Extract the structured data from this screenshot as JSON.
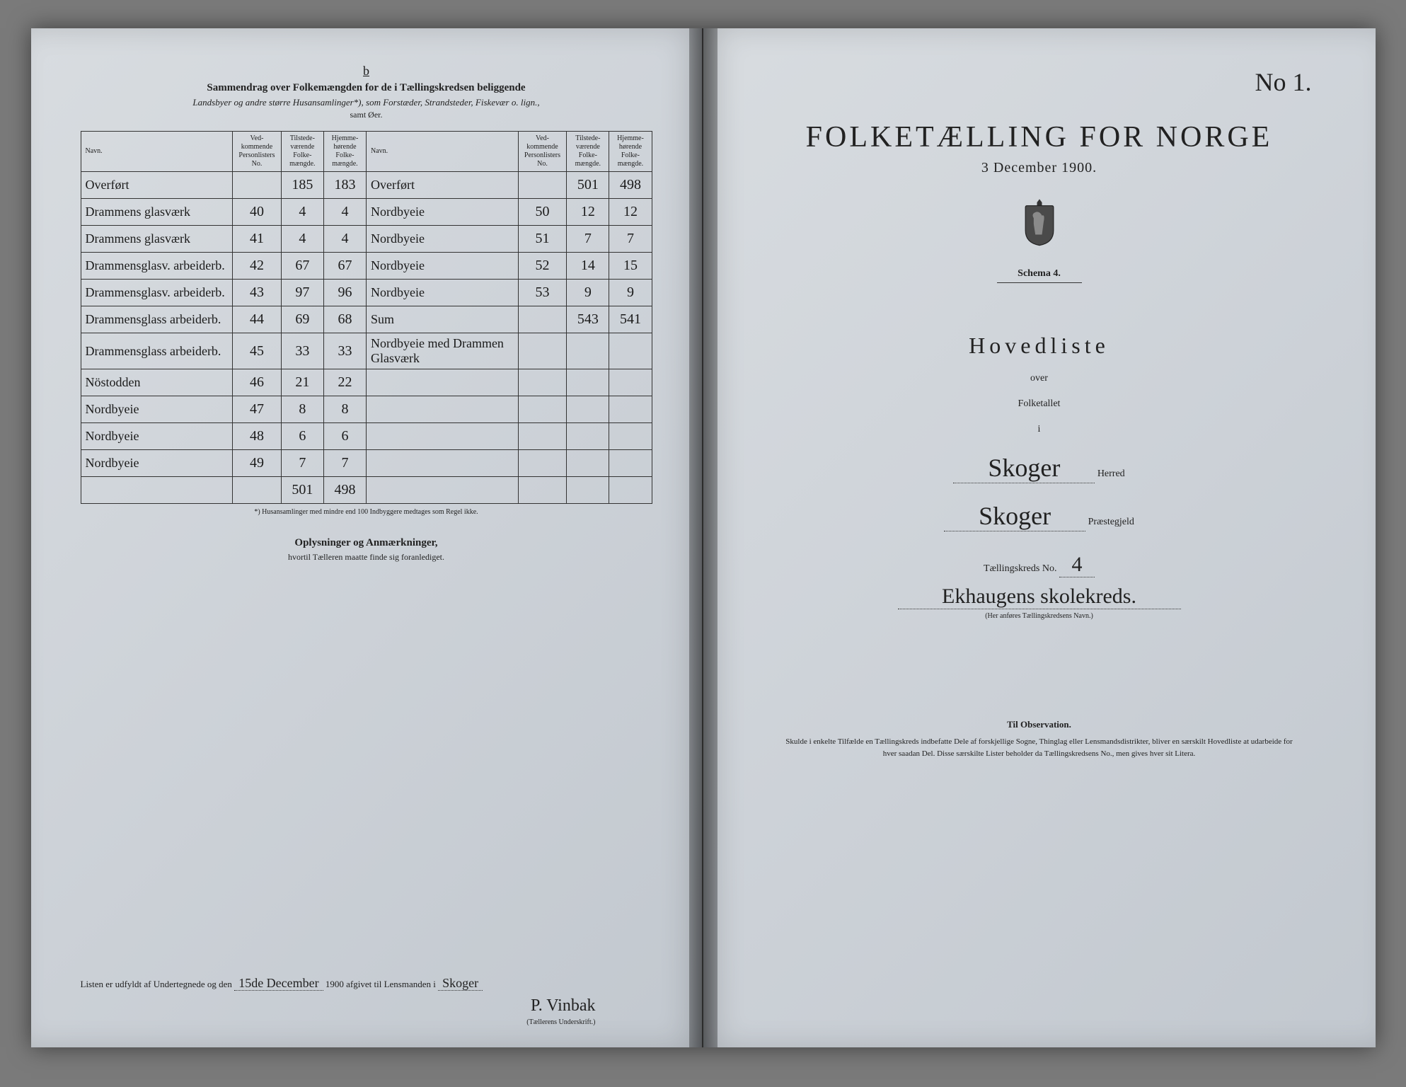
{
  "left": {
    "section_marker": "b",
    "header": "Sammendrag over Folkemængden for de i Tællingskredsen beliggende",
    "sub": "Landsbyer og andre større Husansamlinger*), som Forstæder, Strandsteder, Fiskevær o. lign.,",
    "sub2": "samt Øer.",
    "columns": {
      "navn": "Navn.",
      "ved": "Ved-\nkommende\nPersonlisters\nNo.",
      "tilstede": "Tilstede-\nværende\nFolke-\nmængde.",
      "hjemme": "Hjemme-\nhørende\nFolke-\nmængde."
    },
    "rows_left": [
      {
        "navn": "Overført",
        "no": "",
        "til": "185",
        "hjem": "183"
      },
      {
        "navn": "Drammens glasværk",
        "no": "40",
        "til": "4",
        "hjem": "4"
      },
      {
        "navn": "Drammens glasværk",
        "no": "41",
        "til": "4",
        "hjem": "4"
      },
      {
        "navn": "Drammensglasv. arbeiderb.",
        "no": "42",
        "til": "67",
        "hjem": "67"
      },
      {
        "navn": "Drammensglasv. arbeiderb.",
        "no": "43",
        "til": "97",
        "hjem": "96"
      },
      {
        "navn": "Drammensglass arbeiderb.",
        "no": "44",
        "til": "69",
        "hjem": "68"
      },
      {
        "navn": "Drammensglass arbeiderb.",
        "no": "45",
        "til": "33",
        "hjem": "33"
      },
      {
        "navn": "Nöstodden",
        "no": "46",
        "til": "21",
        "hjem": "22"
      },
      {
        "navn": "Nordbyeie",
        "no": "47",
        "til": "8",
        "hjem": "8"
      },
      {
        "navn": "Nordbyeie",
        "no": "48",
        "til": "6",
        "hjem": "6"
      },
      {
        "navn": "Nordbyeie",
        "no": "49",
        "til": "7",
        "hjem": "7"
      },
      {
        "navn": "",
        "no": "",
        "til": "501",
        "hjem": "498"
      }
    ],
    "rows_right": [
      {
        "navn": "Overført",
        "no": "",
        "til": "501",
        "hjem": "498"
      },
      {
        "navn": "Nordbyeie",
        "no": "50",
        "til": "12",
        "hjem": "12"
      },
      {
        "navn": "Nordbyeie",
        "no": "51",
        "til": "7",
        "hjem": "7"
      },
      {
        "navn": "Nordbyeie",
        "no": "52",
        "til": "14",
        "hjem": "15"
      },
      {
        "navn": "Nordbyeie",
        "no": "53",
        "til": "9",
        "hjem": "9"
      },
      {
        "navn": "Sum",
        "no": "",
        "til": "543",
        "hjem": "541"
      },
      {
        "navn": "Nordbyeie med Drammen Glasværk",
        "no": "",
        "til": "",
        "hjem": ""
      },
      {
        "navn": "",
        "no": "",
        "til": "",
        "hjem": ""
      },
      {
        "navn": "",
        "no": "",
        "til": "",
        "hjem": ""
      },
      {
        "navn": "",
        "no": "",
        "til": "",
        "hjem": ""
      },
      {
        "navn": "",
        "no": "",
        "til": "",
        "hjem": ""
      },
      {
        "navn": "",
        "no": "",
        "til": "",
        "hjem": ""
      }
    ],
    "footnote": "*) Husansamlinger med mindre end 100 Indbyggere medtages som Regel ikke.",
    "oplys": "Oplysninger og Anmærkninger,",
    "oplys_sub": "hvortil Tælleren maatte finde sig foranlediget.",
    "bottom_prefix": "Listen er udfyldt af Undertegnede og den",
    "bottom_date": "15de December",
    "bottom_year": "1900",
    "bottom_mid": "afgivet til Lensmanden i",
    "bottom_place": "Skoger",
    "signature": "P. Vinbak",
    "sig_label": "(Tællerens Underskrift.)"
  },
  "right": {
    "page_no": "No 1.",
    "title": "FOLKETÆLLING FOR NORGE",
    "date": "3 December 1900.",
    "schema": "Schema 4.",
    "hovedliste": "Hovedliste",
    "over": "over",
    "folketallet": "Folketallet",
    "i": "i",
    "herred": "Skoger",
    "herred_label": "Herred",
    "preste": "Skoger",
    "preste_label": "Præstegjeld",
    "kreds_label": "Tællingskreds No.",
    "kreds_no": "4",
    "kreds_name": "Ekhaugens skolekreds.",
    "kreds_note": "(Her anføres Tællingskredsens Navn.)",
    "obs_head": "Til Observation.",
    "obs_body": "Skulde i enkelte Tilfælde en Tællingskreds indbefatte Dele af forskjellige Sogne, Thinglag eller Lensmandsdistrikter, bliver en særskilt Hovedliste at udarbeide for hver saadan Del. Disse særskilte Lister beholder da Tællingskredsens No., men gives hver sit Litera."
  }
}
